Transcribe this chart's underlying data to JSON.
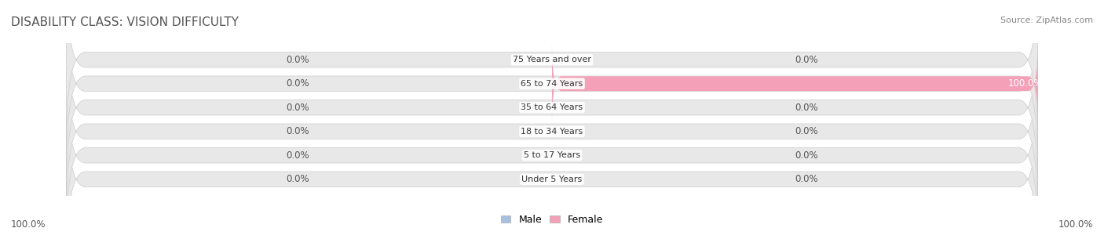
{
  "title": "DISABILITY CLASS: VISION DIFFICULTY",
  "source": "Source: ZipAtlas.com",
  "categories": [
    "Under 5 Years",
    "5 to 17 Years",
    "18 to 34 Years",
    "35 to 64 Years",
    "65 to 74 Years",
    "75 Years and over"
  ],
  "male_values": [
    0.0,
    0.0,
    0.0,
    0.0,
    0.0,
    0.0
  ],
  "female_values": [
    0.0,
    0.0,
    0.0,
    0.0,
    100.0,
    0.0
  ],
  "male_color": "#a8c0e0",
  "female_color": "#f4a0b8",
  "bar_bg_color": "#e8e8e8",
  "male_label": "Male",
  "female_label": "Female",
  "xlim": [
    -100,
    100
  ],
  "left_label": "100.0%",
  "right_label": "100.0%",
  "title_fontsize": 11,
  "source_fontsize": 8,
  "label_fontsize": 8.5,
  "bar_height": 0.6,
  "background_color": "#ffffff"
}
